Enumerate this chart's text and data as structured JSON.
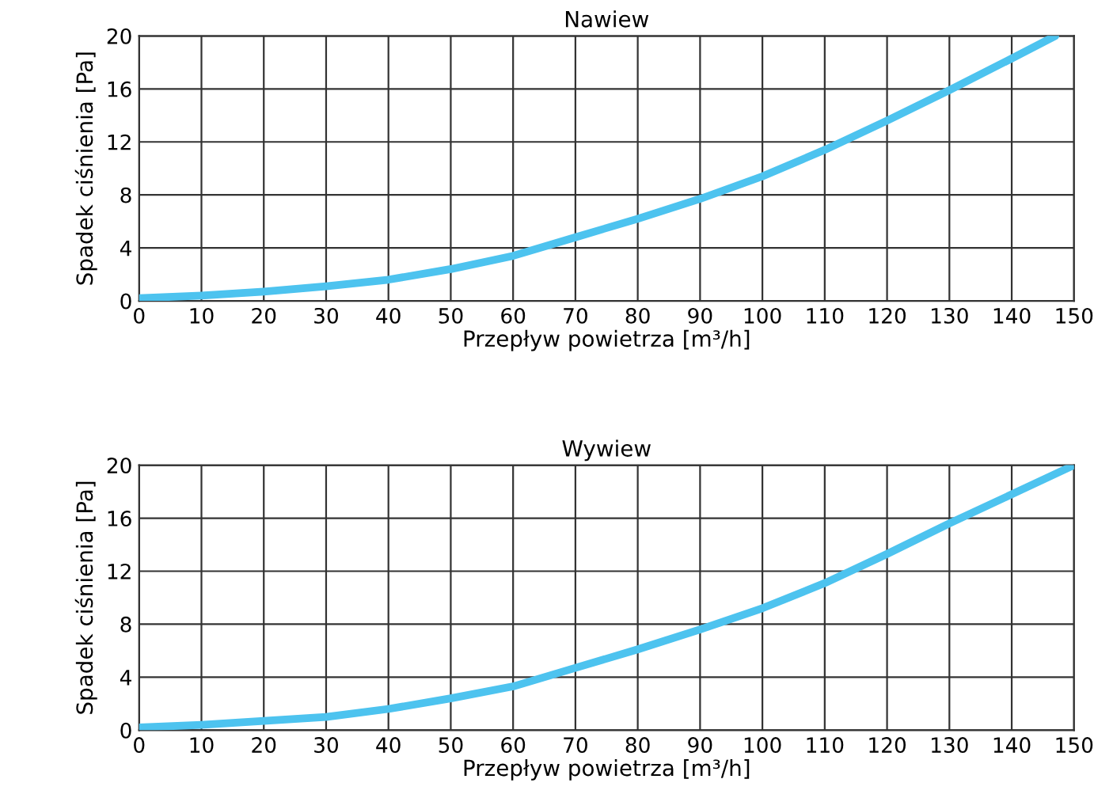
{
  "chart_data": [
    {
      "type": "line",
      "title": "Nawiew",
      "xlabel": "Przepływ powietrza [m³/h]",
      "ylabel": "Spadek ciśnienia [Pa]",
      "xlim": [
        0,
        150
      ],
      "ylim": [
        0,
        20
      ],
      "xticks": [
        0,
        10,
        20,
        30,
        40,
        50,
        60,
        70,
        80,
        90,
        100,
        110,
        120,
        130,
        140,
        150
      ],
      "yticks": [
        0,
        4,
        8,
        12,
        16,
        20
      ],
      "grid": true,
      "marker": "none",
      "line_style": "solid",
      "series": [
        {
          "color": "#4dc3ef",
          "x": [
            0,
            10,
            20,
            30,
            40,
            50,
            60,
            70,
            80,
            90,
            100,
            110,
            120,
            130,
            140,
            147
          ],
          "values": [
            0.2,
            0.4,
            0.7,
            1.1,
            1.6,
            2.4,
            3.4,
            4.8,
            6.2,
            7.7,
            9.4,
            11.4,
            13.6,
            15.9,
            18.3,
            20
          ]
        }
      ]
    },
    {
      "type": "line",
      "title": "Wywiew",
      "xlabel": "Przepływ powietrza [m³/h]",
      "ylabel": "Spadek ciśnienia [Pa]",
      "xlim": [
        0,
        150
      ],
      "ylim": [
        0,
        20
      ],
      "xticks": [
        0,
        10,
        20,
        30,
        40,
        50,
        60,
        70,
        80,
        90,
        100,
        110,
        120,
        130,
        140,
        150
      ],
      "yticks": [
        0,
        4,
        8,
        12,
        16,
        20
      ],
      "grid": true,
      "marker": "none",
      "line_style": "solid",
      "series": [
        {
          "color": "#4dc3ef",
          "x": [
            0,
            10,
            20,
            30,
            40,
            50,
            60,
            70,
            80,
            90,
            100,
            110,
            120,
            130,
            140,
            150
          ],
          "values": [
            0.2,
            0.4,
            0.7,
            1.0,
            1.6,
            2.4,
            3.3,
            4.7,
            6.1,
            7.6,
            9.2,
            11.1,
            13.3,
            15.6,
            17.8,
            20
          ]
        }
      ]
    }
  ]
}
